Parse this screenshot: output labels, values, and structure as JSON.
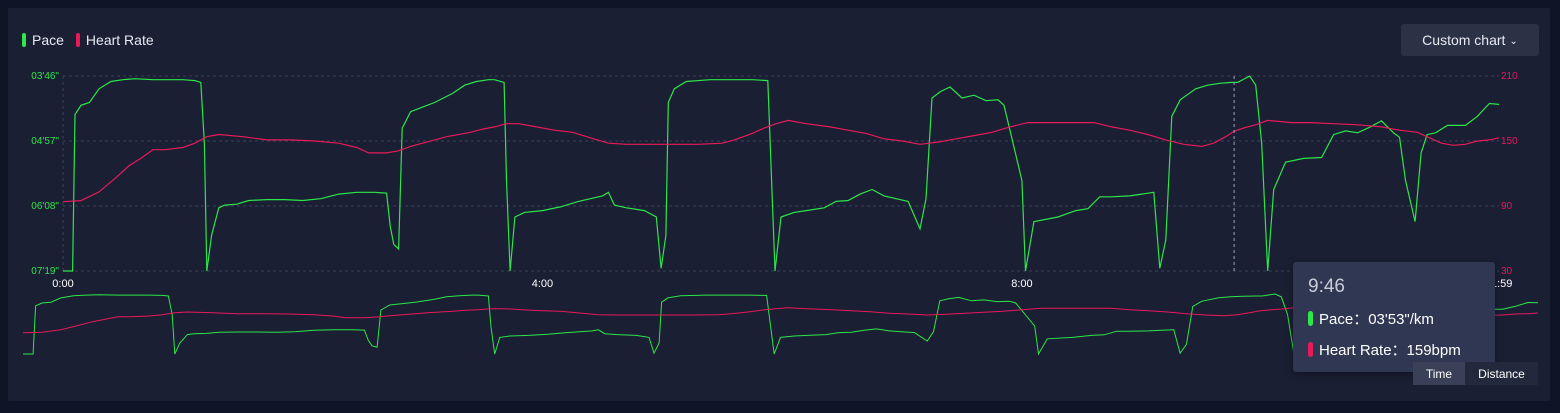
{
  "legend": {
    "pace": {
      "label": "Pace",
      "color": "#2ce64a"
    },
    "heart_rate": {
      "label": "Heart Rate",
      "color": "#e81a5a"
    }
  },
  "custom_chart_label": "Custom chart",
  "toggle": {
    "time_label": "Time",
    "distance_label": "Distance",
    "selected": "Time"
  },
  "tooltip": {
    "time": "9:46",
    "pace_label": "Pace",
    "pace_value": "03'53\"/km",
    "hr_label": "Heart Rate",
    "hr_value": "159bpm",
    "pace_text": "Pace：03'53\"/km",
    "hr_text": "Heart Rate：159bpm"
  },
  "chart_data": {
    "type": "line",
    "x_unit": "minutes",
    "xlim": [
      0,
      11.98
    ],
    "x_ticks": [
      "0:00",
      "4:00",
      "8:00",
      "11:59"
    ],
    "x_tick_values": [
      0,
      4,
      8,
      11.98
    ],
    "y_left": {
      "label": "Pace",
      "ticks": [
        "03'46\"",
        "04'57\"",
        "06'08\"",
        "07'19\""
      ],
      "range_seconds_per_km": [
        226,
        439
      ],
      "inverted": true
    },
    "y_right": {
      "label": "Heart Rate",
      "ticks": [
        "210",
        "150",
        "90",
        "30"
      ],
      "range": [
        30,
        210
      ]
    },
    "grid": "dashed horizontal",
    "legend_position": "top-left",
    "cursor_x": 9.77,
    "series": [
      {
        "name": "Pace",
        "axis": "left",
        "points": [
          [
            0.0,
            439
          ],
          [
            0.08,
            439
          ],
          [
            0.1,
            268
          ],
          [
            0.15,
            258
          ],
          [
            0.22,
            255
          ],
          [
            0.3,
            240
          ],
          [
            0.4,
            232
          ],
          [
            0.5,
            230
          ],
          [
            0.6,
            229
          ],
          [
            0.75,
            230
          ],
          [
            0.9,
            230
          ],
          [
            1.0,
            230
          ],
          [
            1.1,
            231
          ],
          [
            1.15,
            233
          ],
          [
            1.18,
            300
          ],
          [
            1.2,
            439
          ],
          [
            1.24,
            400
          ],
          [
            1.3,
            370
          ],
          [
            1.35,
            367
          ],
          [
            1.45,
            366
          ],
          [
            1.55,
            362
          ],
          [
            1.7,
            361
          ],
          [
            1.85,
            361
          ],
          [
            2.0,
            362
          ],
          [
            2.15,
            360
          ],
          [
            2.3,
            355
          ],
          [
            2.45,
            353
          ],
          [
            2.6,
            353
          ],
          [
            2.7,
            354
          ],
          [
            2.73,
            390
          ],
          [
            2.76,
            410
          ],
          [
            2.8,
            415
          ],
          [
            2.83,
            283
          ],
          [
            2.9,
            265
          ],
          [
            3.0,
            260
          ],
          [
            3.1,
            255
          ],
          [
            3.25,
            245
          ],
          [
            3.35,
            236
          ],
          [
            3.45,
            232
          ],
          [
            3.55,
            230
          ],
          [
            3.6,
            230
          ],
          [
            3.68,
            233
          ],
          [
            3.7,
            340
          ],
          [
            3.73,
            439
          ],
          [
            3.77,
            380
          ],
          [
            3.85,
            375
          ],
          [
            4.0,
            373
          ],
          [
            4.15,
            369
          ],
          [
            4.3,
            363
          ],
          [
            4.5,
            357
          ],
          [
            4.55,
            353
          ],
          [
            4.6,
            367
          ],
          [
            4.7,
            370
          ],
          [
            4.85,
            373
          ],
          [
            4.95,
            380
          ],
          [
            4.99,
            436
          ],
          [
            5.03,
            400
          ],
          [
            5.05,
            255
          ],
          [
            5.1,
            240
          ],
          [
            5.2,
            232
          ],
          [
            5.4,
            230
          ],
          [
            5.6,
            230
          ],
          [
            5.75,
            230
          ],
          [
            5.88,
            231
          ],
          [
            5.9,
            300
          ],
          [
            5.94,
            439
          ],
          [
            5.99,
            380
          ],
          [
            6.1,
            375
          ],
          [
            6.2,
            373
          ],
          [
            6.35,
            370
          ],
          [
            6.45,
            363
          ],
          [
            6.55,
            362
          ],
          [
            6.65,
            355
          ],
          [
            6.75,
            350
          ],
          [
            6.85,
            357
          ],
          [
            6.95,
            360
          ],
          [
            7.05,
            363
          ],
          [
            7.15,
            393
          ],
          [
            7.2,
            360
          ],
          [
            7.25,
            250
          ],
          [
            7.32,
            243
          ],
          [
            7.4,
            238
          ],
          [
            7.5,
            250
          ],
          [
            7.6,
            247
          ],
          [
            7.7,
            253
          ],
          [
            7.8,
            252
          ],
          [
            7.85,
            258
          ],
          [
            8.0,
            340
          ],
          [
            8.03,
            439
          ],
          [
            8.1,
            385
          ],
          [
            8.3,
            380
          ],
          [
            8.45,
            373
          ],
          [
            8.55,
            371
          ],
          [
            8.65,
            358
          ],
          [
            8.75,
            358
          ],
          [
            8.9,
            357
          ],
          [
            9.0,
            355
          ],
          [
            9.1,
            353
          ],
          [
            9.15,
            436
          ],
          [
            9.2,
            405
          ],
          [
            9.25,
            270
          ],
          [
            9.32,
            252
          ],
          [
            9.45,
            240
          ],
          [
            9.55,
            236
          ],
          [
            9.65,
            234
          ],
          [
            9.75,
            233
          ],
          [
            9.77,
            233
          ],
          [
            9.8,
            233
          ],
          [
            9.9,
            226
          ],
          [
            9.95,
            236
          ],
          [
            10.0,
            300
          ],
          [
            10.05,
            439
          ],
          [
            10.1,
            350
          ],
          [
            10.2,
            320
          ],
          [
            10.35,
            316
          ],
          [
            10.5,
            315
          ],
          [
            10.6,
            290
          ],
          [
            10.7,
            286
          ],
          [
            10.8,
            288
          ],
          [
            10.9,
            282
          ],
          [
            11.0,
            275
          ],
          [
            11.1,
            288
          ],
          [
            11.15,
            293
          ],
          [
            11.2,
            340
          ],
          [
            11.28,
            385
          ],
          [
            11.33,
            310
          ],
          [
            11.38,
            290
          ],
          [
            11.45,
            288
          ],
          [
            11.55,
            280
          ],
          [
            11.7,
            280
          ],
          [
            11.8,
            270
          ],
          [
            11.9,
            256
          ],
          [
            11.98,
            257
          ]
        ]
      },
      {
        "name": "Heart Rate",
        "axis": "right",
        "points": [
          [
            0.0,
            94
          ],
          [
            0.15,
            95
          ],
          [
            0.3,
            103
          ],
          [
            0.45,
            117
          ],
          [
            0.55,
            127
          ],
          [
            0.65,
            134
          ],
          [
            0.75,
            142
          ],
          [
            0.85,
            142
          ],
          [
            1.0,
            144
          ],
          [
            1.1,
            148
          ],
          [
            1.2,
            154
          ],
          [
            1.3,
            156
          ],
          [
            1.5,
            154
          ],
          [
            1.7,
            151
          ],
          [
            1.9,
            151
          ],
          [
            2.1,
            150
          ],
          [
            2.3,
            148
          ],
          [
            2.45,
            144
          ],
          [
            2.55,
            139
          ],
          [
            2.7,
            139
          ],
          [
            2.8,
            141
          ],
          [
            2.9,
            145
          ],
          [
            3.0,
            148
          ],
          [
            3.2,
            154
          ],
          [
            3.4,
            158
          ],
          [
            3.5,
            161
          ],
          [
            3.6,
            163
          ],
          [
            3.7,
            166
          ],
          [
            3.8,
            166
          ],
          [
            3.95,
            163
          ],
          [
            4.1,
            160
          ],
          [
            4.25,
            158
          ],
          [
            4.4,
            153
          ],
          [
            4.55,
            148
          ],
          [
            4.7,
            147
          ],
          [
            4.9,
            147
          ],
          [
            5.1,
            147
          ],
          [
            5.3,
            147
          ],
          [
            5.5,
            148
          ],
          [
            5.6,
            151
          ],
          [
            5.75,
            157
          ],
          [
            5.85,
            162
          ],
          [
            5.95,
            166
          ],
          [
            6.05,
            169
          ],
          [
            6.2,
            166
          ],
          [
            6.4,
            163
          ],
          [
            6.55,
            160
          ],
          [
            6.7,
            157
          ],
          [
            6.85,
            152
          ],
          [
            7.0,
            150
          ],
          [
            7.15,
            147
          ],
          [
            7.3,
            149
          ],
          [
            7.45,
            152
          ],
          [
            7.6,
            155
          ],
          [
            7.75,
            158
          ],
          [
            7.9,
            163
          ],
          [
            8.05,
            167
          ],
          [
            8.25,
            167
          ],
          [
            8.45,
            167
          ],
          [
            8.6,
            167
          ],
          [
            8.75,
            163
          ],
          [
            8.9,
            160
          ],
          [
            9.05,
            156
          ],
          [
            9.2,
            151
          ],
          [
            9.35,
            147
          ],
          [
            9.5,
            145
          ],
          [
            9.6,
            148
          ],
          [
            9.7,
            154
          ],
          [
            9.77,
            159
          ],
          [
            9.85,
            162
          ],
          [
            9.95,
            165
          ],
          [
            10.05,
            169
          ],
          [
            10.25,
            167
          ],
          [
            10.4,
            167
          ],
          [
            10.6,
            166
          ],
          [
            10.8,
            165
          ],
          [
            11.0,
            163
          ],
          [
            11.15,
            160
          ],
          [
            11.3,
            158
          ],
          [
            11.4,
            153
          ],
          [
            11.5,
            148
          ],
          [
            11.6,
            146
          ],
          [
            11.7,
            147
          ],
          [
            11.8,
            150
          ],
          [
            11.9,
            151
          ],
          [
            11.98,
            153
          ]
        ]
      }
    ]
  }
}
